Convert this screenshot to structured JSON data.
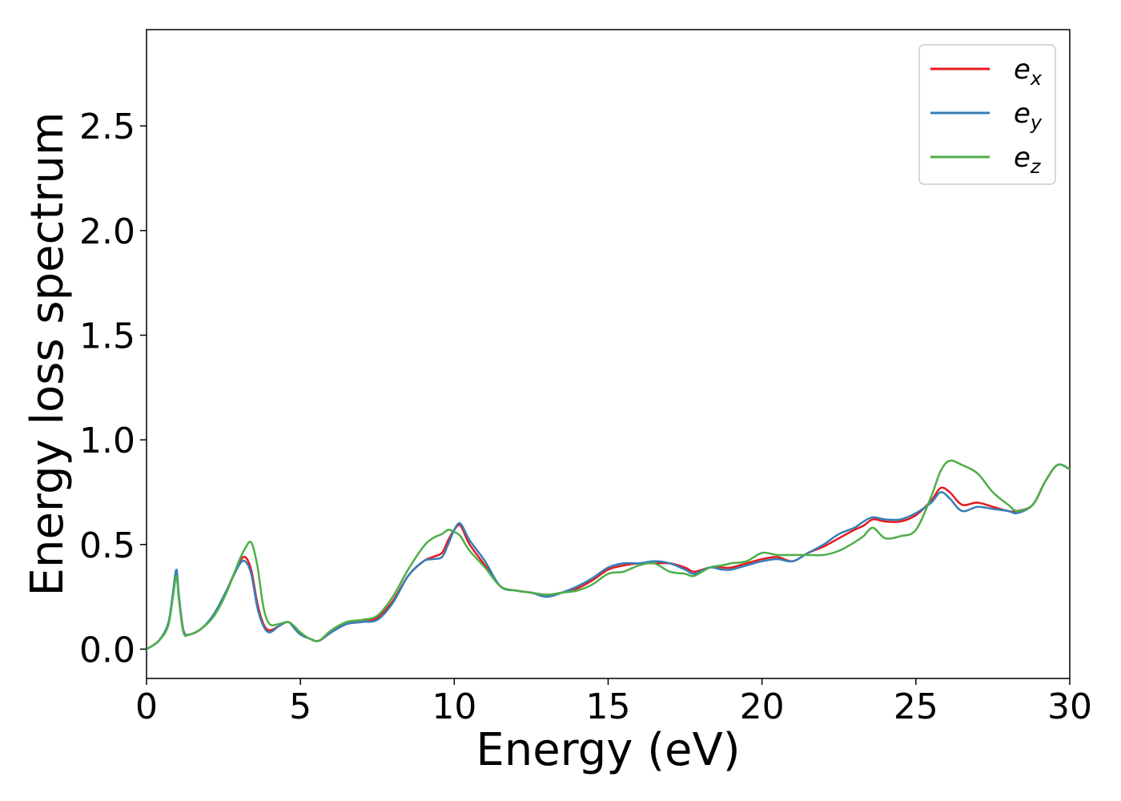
{
  "chart_data": {
    "type": "line",
    "title": "",
    "xlabel": "Energy (eV)",
    "ylabel": "Energy loss spectrum",
    "xlim": [
      0,
      30
    ],
    "ylim": [
      -0.14,
      2.96
    ],
    "xticks": [
      0,
      5,
      10,
      15,
      20,
      25,
      30
    ],
    "yticks": [
      0.0,
      0.5,
      1.0,
      1.5,
      2.0,
      2.5
    ],
    "xtick_labels": [
      "0",
      "5",
      "10",
      "15",
      "20",
      "25",
      "30"
    ],
    "ytick_labels": [
      "0.0",
      "0.5",
      "1.0",
      "1.5",
      "2.0",
      "2.5"
    ],
    "grid": false,
    "legend_position": "top-right",
    "x": [
      0,
      0.4,
      0.7,
      0.85,
      0.97,
      1.05,
      1.2,
      1.4,
      1.8,
      2.2,
      2.6,
      3.0,
      3.2,
      3.4,
      3.6,
      3.8,
      4.0,
      4.3,
      4.6,
      4.8,
      5.0,
      5.3,
      5.6,
      6.0,
      6.5,
      7.0,
      7.5,
      8.0,
      8.5,
      9.0,
      9.3,
      9.6,
      9.8,
      10.0,
      10.2,
      10.5,
      11.0,
      11.5,
      12.0,
      12.5,
      13.0,
      13.5,
      14.0,
      14.5,
      15.0,
      15.5,
      16.0,
      16.5,
      17.0,
      17.5,
      17.8,
      18.3,
      18.7,
      19.0,
      19.5,
      20.0,
      20.5,
      21.0,
      21.5,
      22.0,
      22.5,
      23.0,
      23.3,
      23.6,
      24.0,
      24.5,
      25.0,
      25.5,
      25.8,
      26.1,
      26.5,
      27.0,
      27.5,
      28.0,
      28.3,
      28.8,
      29.2,
      29.6,
      30.0
    ],
    "series": [
      {
        "name": "e_x",
        "color": "#e41a1c",
        "values": [
          0.0,
          0.04,
          0.12,
          0.25,
          0.37,
          0.25,
          0.09,
          0.07,
          0.1,
          0.17,
          0.28,
          0.41,
          0.44,
          0.38,
          0.22,
          0.12,
          0.09,
          0.11,
          0.13,
          0.1,
          0.07,
          0.05,
          0.04,
          0.08,
          0.12,
          0.13,
          0.15,
          0.23,
          0.35,
          0.42,
          0.44,
          0.46,
          0.52,
          0.57,
          0.59,
          0.5,
          0.4,
          0.3,
          0.28,
          0.27,
          0.26,
          0.27,
          0.29,
          0.33,
          0.38,
          0.4,
          0.41,
          0.41,
          0.41,
          0.39,
          0.37,
          0.39,
          0.39,
          0.39,
          0.41,
          0.43,
          0.44,
          0.42,
          0.46,
          0.49,
          0.53,
          0.57,
          0.59,
          0.62,
          0.61,
          0.61,
          0.64,
          0.71,
          0.77,
          0.75,
          0.69,
          0.7,
          0.68,
          0.66,
          0.66,
          0.69,
          0.8,
          0.88,
          0.86
        ]
      },
      {
        "name": "e_y",
        "color": "#377eb8",
        "values": [
          0.0,
          0.04,
          0.12,
          0.26,
          0.38,
          0.26,
          0.09,
          0.07,
          0.1,
          0.17,
          0.28,
          0.4,
          0.42,
          0.36,
          0.2,
          0.11,
          0.08,
          0.11,
          0.13,
          0.1,
          0.07,
          0.05,
          0.04,
          0.08,
          0.12,
          0.13,
          0.14,
          0.22,
          0.35,
          0.42,
          0.43,
          0.44,
          0.5,
          0.57,
          0.6,
          0.52,
          0.42,
          0.3,
          0.28,
          0.27,
          0.25,
          0.27,
          0.3,
          0.34,
          0.39,
          0.41,
          0.41,
          0.42,
          0.41,
          0.38,
          0.36,
          0.39,
          0.38,
          0.38,
          0.4,
          0.42,
          0.43,
          0.42,
          0.46,
          0.5,
          0.55,
          0.58,
          0.61,
          0.63,
          0.62,
          0.62,
          0.65,
          0.7,
          0.75,
          0.72,
          0.66,
          0.68,
          0.67,
          0.66,
          0.65,
          0.69,
          0.8,
          0.88,
          0.86
        ]
      },
      {
        "name": "e_z",
        "color": "#4daf4a",
        "values": [
          0.0,
          0.04,
          0.11,
          0.24,
          0.35,
          0.24,
          0.08,
          0.07,
          0.1,
          0.16,
          0.27,
          0.42,
          0.48,
          0.51,
          0.4,
          0.2,
          0.12,
          0.12,
          0.13,
          0.11,
          0.08,
          0.05,
          0.04,
          0.09,
          0.13,
          0.14,
          0.16,
          0.25,
          0.38,
          0.49,
          0.53,
          0.55,
          0.57,
          0.56,
          0.54,
          0.47,
          0.39,
          0.3,
          0.28,
          0.27,
          0.26,
          0.27,
          0.28,
          0.31,
          0.36,
          0.37,
          0.4,
          0.41,
          0.37,
          0.36,
          0.35,
          0.39,
          0.4,
          0.41,
          0.42,
          0.46,
          0.45,
          0.45,
          0.45,
          0.45,
          0.47,
          0.51,
          0.54,
          0.58,
          0.53,
          0.54,
          0.57,
          0.73,
          0.85,
          0.9,
          0.88,
          0.84,
          0.75,
          0.69,
          0.66,
          0.69,
          0.8,
          0.88,
          0.86
        ]
      }
    ]
  },
  "legend": {
    "entries": [
      {
        "base": "e",
        "sub": "x",
        "color": "#e41a1c"
      },
      {
        "base": "e",
        "sub": "y",
        "color": "#377eb8"
      },
      {
        "base": "e",
        "sub": "z",
        "color": "#4daf4a"
      }
    ]
  }
}
